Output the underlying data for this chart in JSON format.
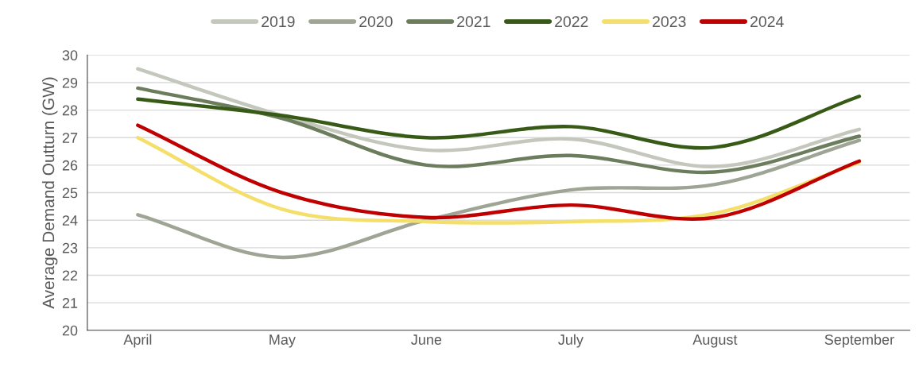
{
  "chart_data": {
    "type": "line",
    "ylabel": "Average Demand Outturn (GW)",
    "categories": [
      "April",
      "May",
      "June",
      "July",
      "August",
      "September"
    ],
    "series": [
      {
        "name": "2019",
        "color": "#c3c7bc",
        "values": [
          29.5,
          27.8,
          26.55,
          26.95,
          25.95,
          27.3
        ]
      },
      {
        "name": "2020",
        "color": "#9ea595",
        "values": [
          24.2,
          22.65,
          24.0,
          25.1,
          25.3,
          26.9
        ]
      },
      {
        "name": "2021",
        "color": "#6b7d5c",
        "values": [
          28.8,
          27.7,
          26.0,
          26.35,
          25.75,
          27.05
        ]
      },
      {
        "name": "2022",
        "color": "#375a16",
        "values": [
          28.4,
          27.8,
          27.0,
          27.4,
          26.65,
          28.5
        ]
      },
      {
        "name": "2023",
        "color": "#f5df6b",
        "values": [
          27.0,
          24.4,
          23.95,
          23.95,
          24.25,
          26.1
        ]
      },
      {
        "name": "2024",
        "color": "#c00000",
        "values": [
          27.45,
          25.0,
          24.1,
          24.55,
          24.1,
          26.15
        ]
      }
    ],
    "ylim": [
      20,
      30
    ],
    "yticks": [
      20,
      21,
      22,
      23,
      24,
      25,
      26,
      27,
      28,
      29,
      30
    ],
    "grid": "y",
    "legend": "top",
    "marker": "none",
    "line_style": "solid"
  }
}
